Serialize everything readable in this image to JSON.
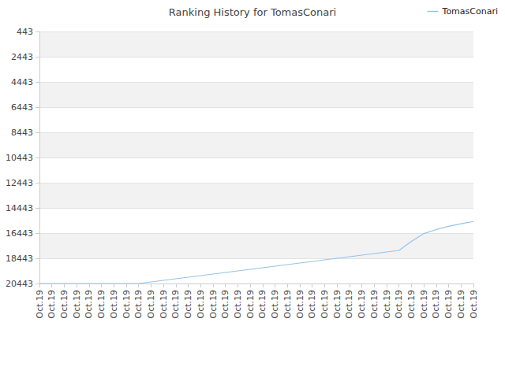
{
  "chart_data": {
    "type": "line",
    "title": "Ranking History for TomasConari",
    "categories": [
      "Oct.19",
      "Oct.19",
      "Oct.19",
      "Oct.19",
      "Oct.19",
      "Oct.19",
      "Oct.19",
      "Oct.19",
      "Oct.19",
      "Oct.19",
      "Oct.19",
      "Oct.19",
      "Oct.19",
      "Oct.19",
      "Oct.19",
      "Oct.19",
      "Oct.19",
      "Oct.19",
      "Oct.19",
      "Oct.19",
      "Oct.19",
      "Oct.19",
      "Oct.19",
      "Oct.19",
      "Oct.19",
      "Oct.19",
      "Oct.19",
      "Oct.19",
      "Oct.19",
      "Oct.19",
      "Oct.19",
      "Oct.19",
      "Oct.19",
      "Oct.19",
      "Oct.19",
      "Oct.19"
    ],
    "series": [
      {
        "name": "TomasConari",
        "color": "#95c3ea",
        "values": [
          20443,
          20443,
          20443,
          20443,
          20443,
          20443,
          20443,
          20443,
          20443,
          20318,
          20193,
          20068,
          19943,
          19818,
          19693,
          19568,
          19443,
          19318,
          19193,
          19068,
          18943,
          18818,
          18693,
          18568,
          18443,
          18318,
          18193,
          18068,
          17943,
          17818,
          17100,
          16480,
          16160,
          15900,
          15700,
          15520
        ]
      }
    ],
    "ylim": [
      20443,
      443
    ],
    "yticks": [
      443,
      2443,
      4443,
      6443,
      8443,
      10443,
      12443,
      14443,
      16443,
      18443,
      20443
    ],
    "grid": true,
    "legend": "top-right"
  }
}
